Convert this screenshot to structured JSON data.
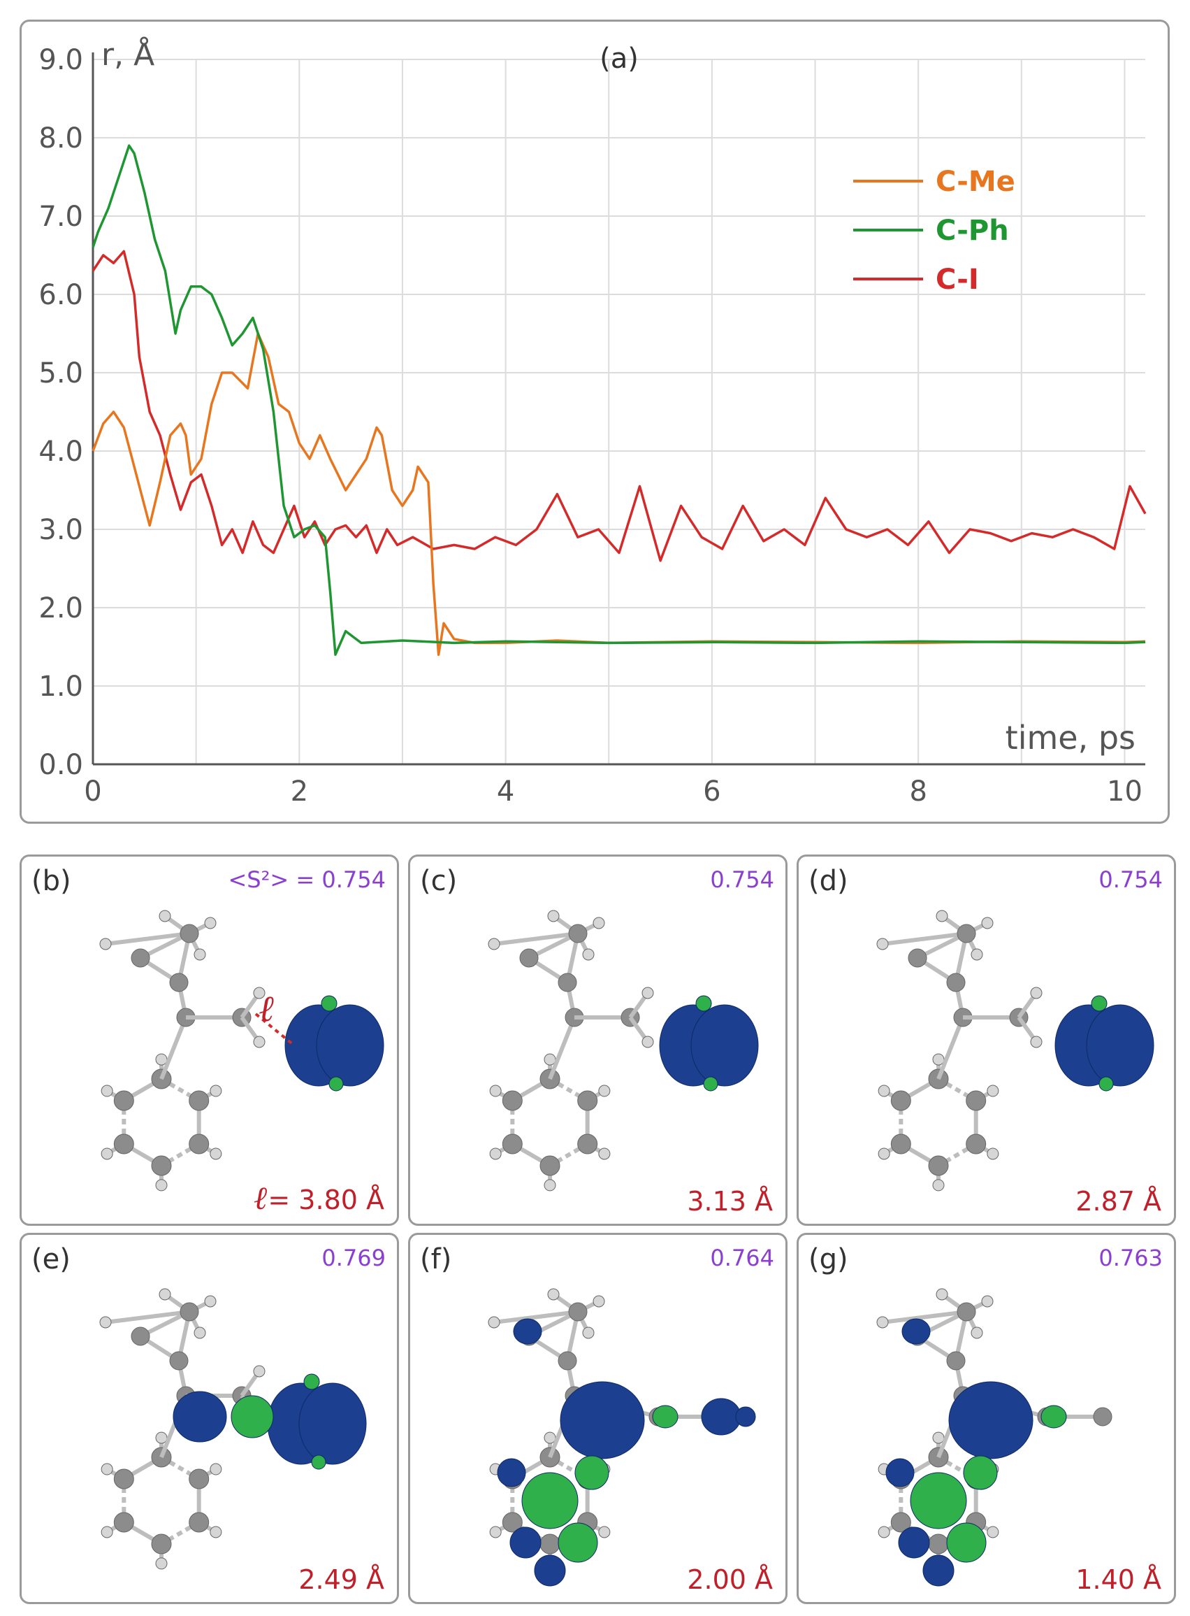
{
  "chart_data": {
    "type": "line",
    "title": "(a)",
    "xlabel": "time, ps",
    "ylabel": "r, Å",
    "xlim": [
      0,
      10.2
    ],
    "ylim": [
      0,
      9.0
    ],
    "x_ticks": [
      "0",
      "2",
      "4",
      "6",
      "8",
      "10"
    ],
    "y_ticks": [
      "0.0",
      "1.0",
      "2.0",
      "3.0",
      "4.0",
      "5.0",
      "6.0",
      "7.0",
      "8.0",
      "9.0"
    ],
    "grid": true,
    "legend_position": "top-right",
    "series": [
      {
        "name": "C-Me",
        "color": "#e8761e",
        "x": [
          0,
          0.1,
          0.2,
          0.3,
          0.4,
          0.5,
          0.55,
          0.65,
          0.75,
          0.85,
          0.9,
          0.95,
          1.05,
          1.15,
          1.25,
          1.35,
          1.5,
          1.6,
          1.7,
          1.8,
          1.9,
          2.0,
          2.1,
          2.2,
          2.3,
          2.45,
          2.55,
          2.65,
          2.75,
          2.8,
          2.9,
          3.0,
          3.1,
          3.15,
          3.25,
          3.3,
          3.35,
          3.4,
          3.5,
          3.7,
          4.0,
          4.5,
          5.0,
          6.0,
          7.0,
          8.0,
          9.0,
          10.0,
          10.2
        ],
        "y": [
          4.0,
          4.35,
          4.5,
          4.3,
          3.8,
          3.3,
          3.05,
          3.6,
          4.2,
          4.35,
          4.2,
          3.7,
          3.9,
          4.6,
          5.0,
          5.0,
          4.8,
          5.5,
          5.2,
          4.6,
          4.5,
          4.1,
          3.9,
          4.2,
          3.9,
          3.5,
          3.7,
          3.9,
          4.3,
          4.2,
          3.5,
          3.3,
          3.5,
          3.8,
          3.6,
          2.3,
          1.4,
          1.8,
          1.6,
          1.55,
          1.55,
          1.58,
          1.55,
          1.57,
          1.56,
          1.55,
          1.57,
          1.56,
          1.57
        ]
      },
      {
        "name": "C-Ph",
        "color": "#1e9632",
        "x": [
          0,
          0.05,
          0.15,
          0.25,
          0.35,
          0.4,
          0.5,
          0.6,
          0.7,
          0.8,
          0.85,
          0.95,
          1.05,
          1.15,
          1.25,
          1.35,
          1.45,
          1.55,
          1.65,
          1.75,
          1.85,
          1.95,
          2.05,
          2.15,
          2.25,
          2.3,
          2.35,
          2.45,
          2.6,
          3.0,
          3.5,
          4.0,
          5.0,
          6.0,
          7.0,
          8.0,
          9.0,
          10.0,
          10.2
        ],
        "y": [
          6.6,
          6.8,
          7.1,
          7.5,
          7.9,
          7.8,
          7.3,
          6.7,
          6.3,
          5.5,
          5.8,
          6.1,
          6.1,
          6.0,
          5.7,
          5.35,
          5.5,
          5.7,
          5.3,
          4.5,
          3.3,
          2.9,
          3.0,
          3.05,
          2.9,
          2.2,
          1.4,
          1.7,
          1.55,
          1.58,
          1.55,
          1.57,
          1.55,
          1.56,
          1.55,
          1.57,
          1.56,
          1.55,
          1.56
        ]
      },
      {
        "name": "C-I",
        "color": "#d42a2a",
        "x": [
          0,
          0.1,
          0.2,
          0.3,
          0.4,
          0.45,
          0.55,
          0.65,
          0.75,
          0.85,
          0.95,
          1.05,
          1.15,
          1.25,
          1.35,
          1.45,
          1.55,
          1.65,
          1.75,
          1.85,
          1.95,
          2.05,
          2.15,
          2.25,
          2.35,
          2.45,
          2.55,
          2.65,
          2.75,
          2.85,
          2.95,
          3.1,
          3.3,
          3.5,
          3.7,
          3.9,
          4.1,
          4.3,
          4.5,
          4.7,
          4.9,
          5.1,
          5.3,
          5.5,
          5.7,
          5.9,
          6.1,
          6.3,
          6.5,
          6.7,
          6.9,
          7.1,
          7.3,
          7.5,
          7.7,
          7.9,
          8.1,
          8.3,
          8.5,
          8.7,
          8.9,
          9.1,
          9.3,
          9.5,
          9.7,
          9.9,
          10.05,
          10.2
        ],
        "y": [
          6.3,
          6.5,
          6.4,
          6.55,
          6.0,
          5.2,
          4.5,
          4.2,
          3.7,
          3.25,
          3.6,
          3.7,
          3.3,
          2.8,
          3.0,
          2.7,
          3.1,
          2.8,
          2.7,
          3.0,
          3.3,
          2.9,
          3.1,
          2.8,
          3.0,
          3.05,
          2.9,
          3.05,
          2.7,
          3.0,
          2.8,
          2.9,
          2.75,
          2.8,
          2.75,
          2.9,
          2.8,
          3.0,
          3.45,
          2.9,
          3.0,
          2.7,
          3.55,
          2.6,
          3.3,
          2.9,
          2.75,
          3.3,
          2.85,
          3.0,
          2.8,
          3.4,
          3.0,
          2.9,
          3.0,
          2.8,
          3.1,
          2.7,
          3.0,
          2.95,
          2.85,
          2.95,
          2.9,
          3.0,
          2.9,
          2.75,
          3.55,
          3.2
        ]
      }
    ]
  },
  "panels": [
    {
      "label": "(b)",
      "s2": "<S²> = 0.754",
      "dist_prefix": "ℓ",
      "dist": "= 3.80 Å",
      "bond_label": "ℓ"
    },
    {
      "label": "(c)",
      "s2": "0.754",
      "dist": "3.13 Å"
    },
    {
      "label": "(d)",
      "s2": "0.754",
      "dist": "2.87 Å"
    },
    {
      "label": "(e)",
      "s2": "0.769",
      "dist": "2.49 Å"
    },
    {
      "label": "(f)",
      "s2": "0.764",
      "dist": "2.00 Å"
    },
    {
      "label": "(g)",
      "s2": "0.763",
      "dist": "1.40 Å"
    }
  ],
  "colors": {
    "orbital_blue": "#1c3f8f",
    "orbital_green": "#2fb04a",
    "atom_gray": "#8c8c8c",
    "atom_h": "#d6d6d6",
    "bond": "#bdbdbd"
  }
}
